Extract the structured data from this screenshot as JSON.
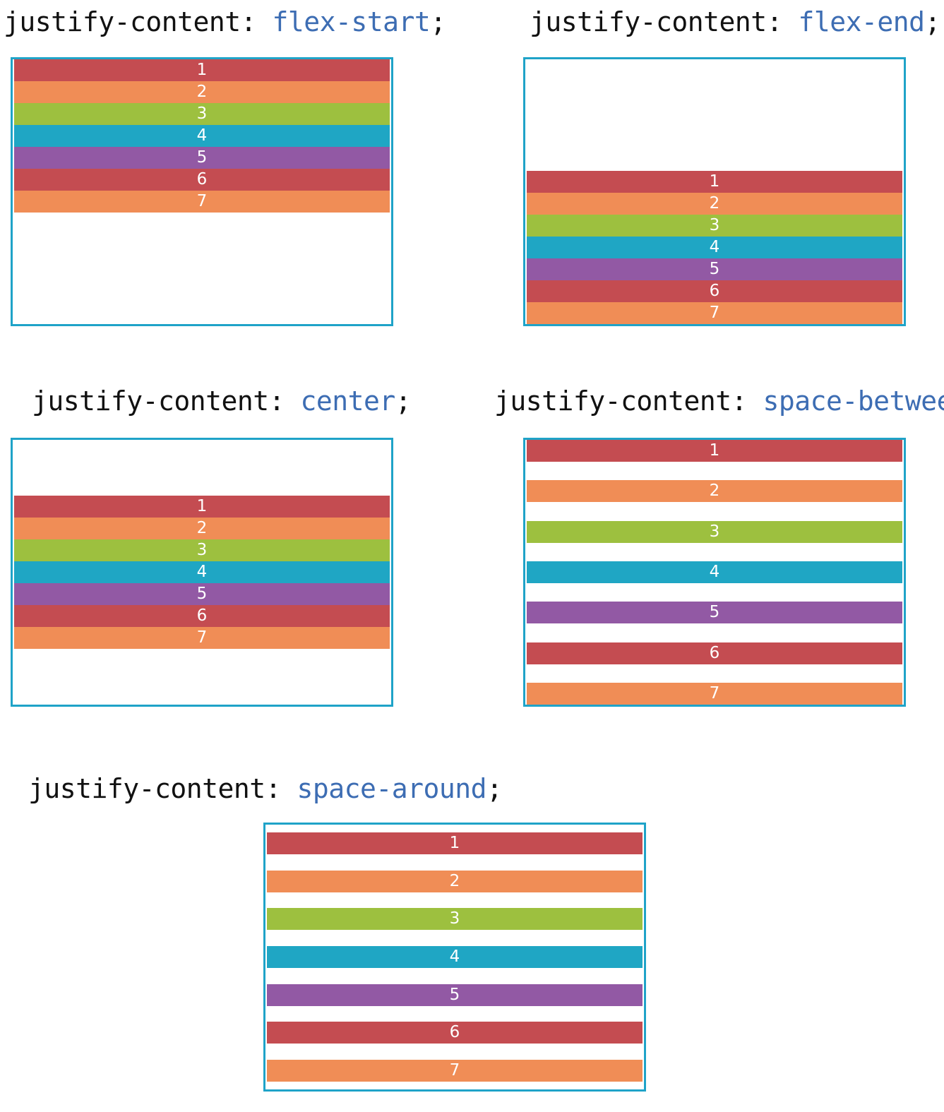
{
  "colors": {
    "border": "#1fa3c8",
    "value_text": "#3d6db3",
    "item_colors": [
      "#c44c51",
      "#f08d56",
      "#9dc03f",
      "#1fa6c4",
      "#9259a4",
      "#c44c51",
      "#f08d56"
    ]
  },
  "property": "justify-content:",
  "items": [
    "1",
    "2",
    "3",
    "4",
    "5",
    "6",
    "7"
  ],
  "examples": [
    {
      "id": "flex-start",
      "value": "flex-start",
      "terminator": ";"
    },
    {
      "id": "flex-end",
      "value": "flex-end",
      "terminator": ";"
    },
    {
      "id": "center",
      "value": "center",
      "terminator": ";"
    },
    {
      "id": "space-between",
      "value": "space-between",
      "terminator": ";"
    },
    {
      "id": "space-around",
      "value": "space-around",
      "terminator": ";"
    }
  ]
}
